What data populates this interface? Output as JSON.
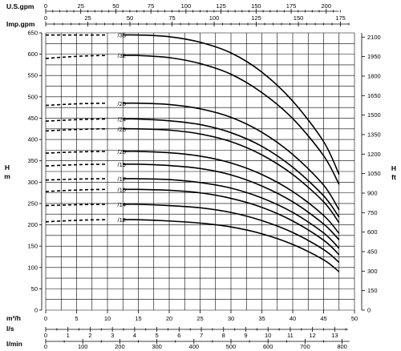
{
  "chart_data": {
    "type": "line",
    "top_axis_1": {
      "label": "U.S.gpm",
      "ticks": [
        "0",
        "25",
        "50",
        "75",
        "100",
        "125",
        "150",
        "175",
        "200"
      ]
    },
    "top_axis_2": {
      "label": "Imp.gpm",
      "ticks": [
        "0",
        "25",
        "50",
        "75",
        "100",
        "125",
        "150",
        "175"
      ]
    },
    "left_axis": {
      "label": "H\nm",
      "ticks": [
        "0",
        "50",
        "100",
        "150",
        "200",
        "250",
        "300",
        "350",
        "400",
        "450",
        "500",
        "550",
        "600",
        "650"
      ]
    },
    "right_axis": {
      "label": "H\nft",
      "ticks": [
        "0",
        "150",
        "300",
        "450",
        "600",
        "750",
        "900",
        "1050",
        "1200",
        "1350",
        "1500",
        "1650",
        "1800",
        "1950",
        "2100"
      ]
    },
    "bottom_axis_1": {
      "label": "m³/h",
      "ticks": [
        "0",
        "5",
        "10",
        "15",
        "20",
        "25",
        "30",
        "35",
        "40",
        "45",
        "50"
      ]
    },
    "bottom_axis_2": {
      "label": "l/s",
      "ticks": [
        "0",
        "1",
        "2",
        "3",
        "4",
        "5",
        "6",
        "7",
        "8",
        "9",
        "10",
        "11",
        "12",
        "13"
      ]
    },
    "bottom_axis_3": {
      "label": "l/min",
      "ticks": [
        "0",
        "100",
        "200",
        "300",
        "400",
        "500",
        "600",
        "700",
        "800"
      ]
    },
    "xlim": [
      0,
      50
    ],
    "ylim": [
      0,
      650
    ],
    "grid": true,
    "dashed_range_m3h": [
      0,
      10
    ],
    "series": [
      {
        "name": "/35",
        "points": [
          [
            0,
            645
          ],
          [
            12.5,
            645
          ],
          [
            15,
            645
          ],
          [
            20,
            641
          ],
          [
            25,
            628
          ],
          [
            30,
            603
          ],
          [
            35,
            558
          ],
          [
            40,
            490
          ],
          [
            45,
            395
          ],
          [
            47.5,
            318
          ]
        ]
      },
      {
        "name": "/32",
        "points": [
          [
            0,
            590
          ],
          [
            12.5,
            597
          ],
          [
            15,
            597
          ],
          [
            20,
            592
          ],
          [
            25,
            578
          ],
          [
            30,
            553
          ],
          [
            35,
            510
          ],
          [
            40,
            449
          ],
          [
            45,
            362
          ],
          [
            47.5,
            295
          ]
        ]
      },
      {
        "name": "/26",
        "points": [
          [
            0,
            480
          ],
          [
            12.5,
            485
          ],
          [
            15,
            485
          ],
          [
            20,
            482
          ],
          [
            25,
            472
          ],
          [
            30,
            452
          ],
          [
            35,
            417
          ],
          [
            40,
            365
          ],
          [
            45,
            293
          ],
          [
            47.5,
            235
          ]
        ]
      },
      {
        "name": "/24",
        "points": [
          [
            0,
            443
          ],
          [
            12.5,
            448
          ],
          [
            15,
            448
          ],
          [
            20,
            444
          ],
          [
            25,
            435
          ],
          [
            30,
            416
          ],
          [
            35,
            384
          ],
          [
            40,
            335
          ],
          [
            45,
            268
          ],
          [
            47.5,
            218
          ]
        ]
      },
      {
        "name": "/23",
        "points": [
          [
            0,
            420
          ],
          [
            12.5,
            425
          ],
          [
            15,
            425
          ],
          [
            20,
            422
          ],
          [
            25,
            413
          ],
          [
            30,
            395
          ],
          [
            35,
            364
          ],
          [
            40,
            318
          ],
          [
            45,
            254
          ],
          [
            47.5,
            205
          ]
        ]
      },
      {
        "name": "/20",
        "points": [
          [
            0,
            368
          ],
          [
            12.5,
            372
          ],
          [
            15,
            372
          ],
          [
            20,
            369
          ],
          [
            25,
            361
          ],
          [
            30,
            345
          ],
          [
            35,
            318
          ],
          [
            40,
            278
          ],
          [
            45,
            222
          ],
          [
            47.5,
            180
          ]
        ]
      },
      {
        "name": "/19",
        "points": [
          [
            0,
            338
          ],
          [
            12.5,
            342
          ],
          [
            15,
            342
          ],
          [
            20,
            339
          ],
          [
            25,
            332
          ],
          [
            30,
            317
          ],
          [
            35,
            291
          ],
          [
            40,
            254
          ],
          [
            45,
            202
          ],
          [
            47.5,
            165
          ]
        ]
      },
      {
        "name": "/17",
        "points": [
          [
            0,
            305
          ],
          [
            12.5,
            308
          ],
          [
            15,
            308
          ],
          [
            20,
            306
          ],
          [
            25,
            299
          ],
          [
            30,
            286
          ],
          [
            35,
            263
          ],
          [
            40,
            229
          ],
          [
            45,
            181
          ],
          [
            47.5,
            145
          ]
        ]
      },
      {
        "name": "/16",
        "points": [
          [
            0,
            278
          ],
          [
            12.5,
            283
          ],
          [
            15,
            283
          ],
          [
            20,
            281
          ],
          [
            25,
            275
          ],
          [
            30,
            262
          ],
          [
            35,
            241
          ],
          [
            40,
            209
          ],
          [
            45,
            164
          ],
          [
            47.5,
            130
          ]
        ]
      },
      {
        "name": "/14",
        "points": [
          [
            0,
            245
          ],
          [
            12.5,
            248
          ],
          [
            15,
            248
          ],
          [
            20,
            245
          ],
          [
            25,
            240
          ],
          [
            30,
            229
          ],
          [
            35,
            210
          ],
          [
            40,
            182
          ],
          [
            45,
            142
          ],
          [
            47.5,
            112
          ]
        ]
      },
      {
        "name": "/12",
        "points": [
          [
            0,
            207
          ],
          [
            12.5,
            212
          ],
          [
            15,
            212
          ],
          [
            20,
            209
          ],
          [
            25,
            204
          ],
          [
            30,
            195
          ],
          [
            35,
            179
          ],
          [
            40,
            154
          ],
          [
            45,
            118
          ],
          [
            47.5,
            90
          ]
        ]
      }
    ],
    "series_label_x_m3h": 11.5
  }
}
